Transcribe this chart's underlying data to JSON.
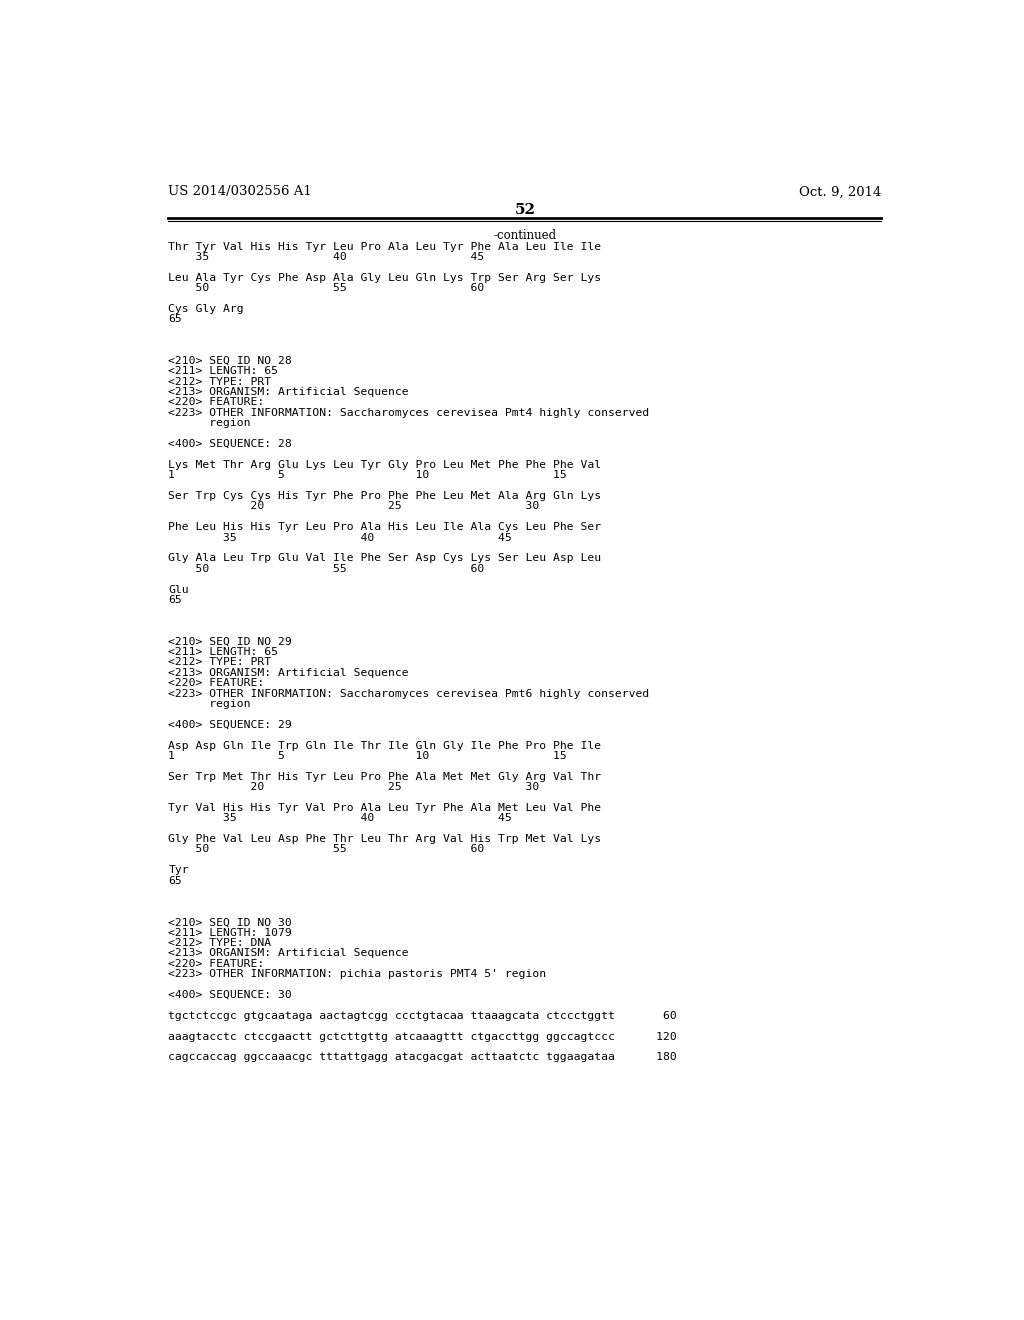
{
  "header_left": "US 2014/0302556 A1",
  "header_right": "Oct. 9, 2014",
  "page_number": "52",
  "continued_label": "-continued",
  "background_color": "#ffffff",
  "text_color": "#000000",
  "font_size_header": 9.5,
  "font_size_page": 11.0,
  "font_size_body": 8.5,
  "font_size_mono": 8.2,
  "content_lines": [
    {
      "text": "Thr Tyr Val His His Tyr Leu Pro Ala Leu Tyr Phe Ala Leu Ile Ile",
      "mono": true
    },
    {
      "text": "    35                  40                  45",
      "mono": true
    },
    {
      "text": "",
      "mono": false
    },
    {
      "text": "Leu Ala Tyr Cys Phe Asp Ala Gly Leu Gln Lys Trp Ser Arg Ser Lys",
      "mono": true
    },
    {
      "text": "    50                  55                  60",
      "mono": true
    },
    {
      "text": "",
      "mono": false
    },
    {
      "text": "Cys Gly Arg",
      "mono": true
    },
    {
      "text": "65",
      "mono": true
    },
    {
      "text": "",
      "mono": false
    },
    {
      "text": "",
      "mono": false
    },
    {
      "text": "",
      "mono": false
    },
    {
      "text": "<210> SEQ ID NO 28",
      "mono": true
    },
    {
      "text": "<211> LENGTH: 65",
      "mono": true
    },
    {
      "text": "<212> TYPE: PRT",
      "mono": true
    },
    {
      "text": "<213> ORGANISM: Artificial Sequence",
      "mono": true
    },
    {
      "text": "<220> FEATURE:",
      "mono": true
    },
    {
      "text": "<223> OTHER INFORMATION: Saccharomyces cerevisea Pmt4 highly conserved",
      "mono": true
    },
    {
      "text": "      region",
      "mono": true
    },
    {
      "text": "",
      "mono": false
    },
    {
      "text": "<400> SEQUENCE: 28",
      "mono": true
    },
    {
      "text": "",
      "mono": false
    },
    {
      "text": "Lys Met Thr Arg Glu Lys Leu Tyr Gly Pro Leu Met Phe Phe Phe Val",
      "mono": true
    },
    {
      "text": "1               5                   10                  15",
      "mono": true
    },
    {
      "text": "",
      "mono": false
    },
    {
      "text": "Ser Trp Cys Cys His Tyr Phe Pro Phe Phe Leu Met Ala Arg Gln Lys",
      "mono": true
    },
    {
      "text": "            20                  25                  30",
      "mono": true
    },
    {
      "text": "",
      "mono": false
    },
    {
      "text": "Phe Leu His His Tyr Leu Pro Ala His Leu Ile Ala Cys Leu Phe Ser",
      "mono": true
    },
    {
      "text": "        35                  40                  45",
      "mono": true
    },
    {
      "text": "",
      "mono": false
    },
    {
      "text": "Gly Ala Leu Trp Glu Val Ile Phe Ser Asp Cys Lys Ser Leu Asp Leu",
      "mono": true
    },
    {
      "text": "    50                  55                  60",
      "mono": true
    },
    {
      "text": "",
      "mono": false
    },
    {
      "text": "Glu",
      "mono": true
    },
    {
      "text": "65",
      "mono": true
    },
    {
      "text": "",
      "mono": false
    },
    {
      "text": "",
      "mono": false
    },
    {
      "text": "",
      "mono": false
    },
    {
      "text": "<210> SEQ ID NO 29",
      "mono": true
    },
    {
      "text": "<211> LENGTH: 65",
      "mono": true
    },
    {
      "text": "<212> TYPE: PRT",
      "mono": true
    },
    {
      "text": "<213> ORGANISM: Artificial Sequence",
      "mono": true
    },
    {
      "text": "<220> FEATURE:",
      "mono": true
    },
    {
      "text": "<223> OTHER INFORMATION: Saccharomyces cerevisea Pmt6 highly conserved",
      "mono": true
    },
    {
      "text": "      region",
      "mono": true
    },
    {
      "text": "",
      "mono": false
    },
    {
      "text": "<400> SEQUENCE: 29",
      "mono": true
    },
    {
      "text": "",
      "mono": false
    },
    {
      "text": "Asp Asp Gln Ile Trp Gln Ile Thr Ile Gln Gly Ile Phe Pro Phe Ile",
      "mono": true
    },
    {
      "text": "1               5                   10                  15",
      "mono": true
    },
    {
      "text": "",
      "mono": false
    },
    {
      "text": "Ser Trp Met Thr His Tyr Leu Pro Phe Ala Met Met Gly Arg Val Thr",
      "mono": true
    },
    {
      "text": "            20                  25                  30",
      "mono": true
    },
    {
      "text": "",
      "mono": false
    },
    {
      "text": "Tyr Val His His Tyr Val Pro Ala Leu Tyr Phe Ala Met Leu Val Phe",
      "mono": true
    },
    {
      "text": "        35                  40                  45",
      "mono": true
    },
    {
      "text": "",
      "mono": false
    },
    {
      "text": "Gly Phe Val Leu Asp Phe Thr Leu Thr Arg Val His Trp Met Val Lys",
      "mono": true
    },
    {
      "text": "    50                  55                  60",
      "mono": true
    },
    {
      "text": "",
      "mono": false
    },
    {
      "text": "Tyr",
      "mono": true
    },
    {
      "text": "65",
      "mono": true
    },
    {
      "text": "",
      "mono": false
    },
    {
      "text": "",
      "mono": false
    },
    {
      "text": "",
      "mono": false
    },
    {
      "text": "<210> SEQ ID NO 30",
      "mono": true
    },
    {
      "text": "<211> LENGTH: 1079",
      "mono": true
    },
    {
      "text": "<212> TYPE: DNA",
      "mono": true
    },
    {
      "text": "<213> ORGANISM: Artificial Sequence",
      "mono": true
    },
    {
      "text": "<220> FEATURE:",
      "mono": true
    },
    {
      "text": "<223> OTHER INFORMATION: pichia pastoris PMT4 5' region",
      "mono": true
    },
    {
      "text": "",
      "mono": false
    },
    {
      "text": "<400> SEQUENCE: 30",
      "mono": true
    },
    {
      "text": "",
      "mono": false
    },
    {
      "text": "tgctctccgc gtgcaataga aactagtcgg ccctgtacaa ttaaagcata ctccctggtt       60",
      "mono": true
    },
    {
      "text": "",
      "mono": false
    },
    {
      "text": "aaagtacctc ctccgaactt gctcttgttg atcaaagttt ctgaccttgg ggccagtccc      120",
      "mono": true
    },
    {
      "text": "",
      "mono": false
    },
    {
      "text": "cagccaccag ggccaaacgc tttattgagg atacgacgat acttaatctc tggaagataa      180",
      "mono": true
    }
  ]
}
